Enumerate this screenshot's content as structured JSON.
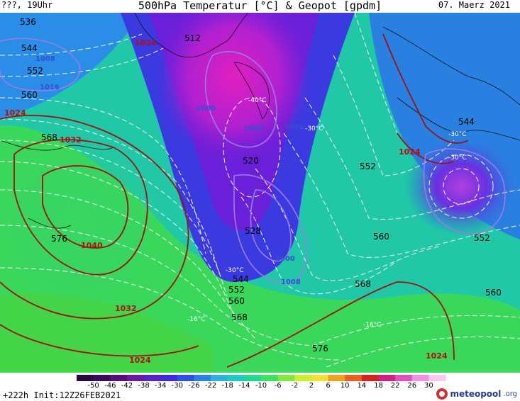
{
  "header": {
    "top_left": "???, 19Uhr",
    "title": "500hPa Temperatur [°C] & Geopot [gpdm]",
    "date": "07. Maerz 2021"
  },
  "map_labels": {
    "geopot": [
      {
        "text": "536"
      },
      {
        "text": "544"
      },
      {
        "text": "552"
      },
      {
        "text": "560"
      },
      {
        "text": "568"
      },
      {
        "text": "576"
      },
      {
        "text": "512"
      },
      {
        "text": "520"
      },
      {
        "text": "528"
      },
      {
        "text": "544"
      },
      {
        "text": "552"
      },
      {
        "text": "560"
      },
      {
        "text": "568"
      },
      {
        "text": "552"
      },
      {
        "text": "560"
      },
      {
        "text": "568"
      },
      {
        "text": "576"
      },
      {
        "text": "544"
      },
      {
        "text": "552"
      },
      {
        "text": "560"
      }
    ],
    "pressure": [
      {
        "text": "1024"
      },
      {
        "text": "1024"
      },
      {
        "text": "1032"
      },
      {
        "text": "1040"
      },
      {
        "text": "1032"
      },
      {
        "text": "1024"
      },
      {
        "text": "1024"
      },
      {
        "text": "1024"
      }
    ],
    "low_pressure": [
      {
        "text": "1008"
      },
      {
        "text": "1016"
      },
      {
        "text": "1000"
      },
      {
        "text": "1008"
      },
      {
        "text": "1008"
      },
      {
        "text": "1000"
      },
      {
        "text": "1008"
      }
    ],
    "temperature": [
      {
        "text": "-30°C"
      },
      {
        "text": "-30°C"
      },
      {
        "text": "-30°C"
      },
      {
        "text": "-16°C"
      },
      {
        "text": "-16°C"
      },
      {
        "text": "-30°C"
      },
      {
        "text": "-40°C"
      }
    ]
  },
  "colorbar": {
    "labels": [
      "-50",
      "-46",
      "-42",
      "-38",
      "-34",
      "-30",
      "-26",
      "-22",
      "-18",
      "-14",
      "-10",
      "-6",
      "-2",
      "2",
      "6",
      "10",
      "14",
      "18",
      "22",
      "26",
      "30"
    ],
    "colors": [
      "#2a0a3a",
      "#3a0a5a",
      "#55107a",
      "#6a1aa0",
      "#5a20c8",
      "#3a2ae0",
      "#2a50e8",
      "#2a80e8",
      "#2ab0e0",
      "#20c8c0",
      "#20d890",
      "#40e060",
      "#80e840",
      "#c8f030",
      "#f0e030",
      "#f0a020",
      "#e86020",
      "#d82020",
      "#d02080",
      "#e050c0",
      "#f090e0",
      "#f8c8f0"
    ]
  },
  "footer": {
    "init": "+222h Init:12Z26FEB2021",
    "logo_name": "meteopool",
    "logo_tld": ".org"
  }
}
